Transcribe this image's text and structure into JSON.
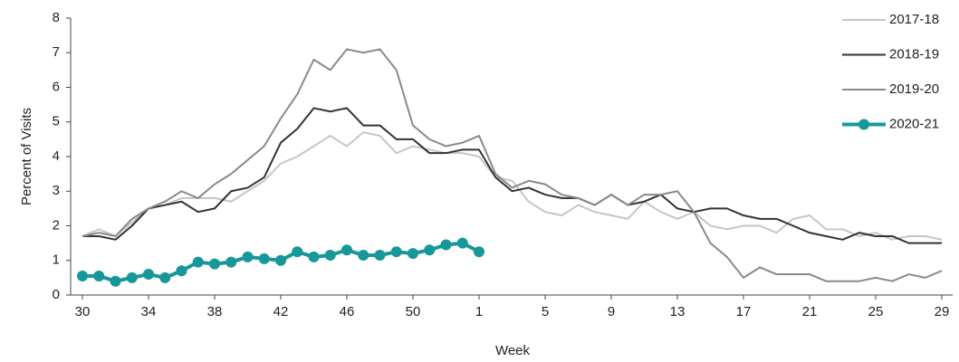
{
  "chart_data": {
    "type": "line",
    "xlabel": "Week",
    "ylabel": "Percent of Visits",
    "categories": [
      "30",
      null,
      null,
      null,
      "34",
      null,
      null,
      null,
      "38",
      null,
      null,
      null,
      "42",
      null,
      null,
      null,
      "46",
      null,
      null,
      null,
      "50",
      null,
      null,
      null,
      "1",
      null,
      null,
      null,
      "5",
      null,
      null,
      null,
      "9",
      null,
      null,
      null,
      "13",
      null,
      null,
      null,
      "17",
      null,
      null,
      null,
      "21",
      null,
      null,
      null,
      "25",
      null,
      null,
      null,
      "29"
    ],
    "ylim": [
      0,
      8
    ],
    "yticks": [
      0,
      1,
      2,
      3,
      4,
      5,
      6,
      7,
      8
    ],
    "legend": "upper right",
    "series": [
      {
        "name": "2017-18",
        "color": "#c6c6c6",
        "values": [
          1.7,
          1.9,
          1.7,
          2.1,
          2.5,
          2.6,
          2.8,
          2.8,
          2.8,
          2.7,
          3.0,
          3.3,
          3.8,
          4.0,
          4.3,
          4.6,
          4.3,
          4.7,
          4.6,
          4.1,
          4.3,
          4.2,
          4.1,
          4.1,
          4.0,
          3.4,
          3.3,
          2.7,
          2.4,
          2.3,
          2.6,
          2.4,
          2.3,
          2.2,
          2.7,
          2.4,
          2.2,
          2.4,
          2.0,
          1.9,
          2.0,
          2.0,
          1.8,
          2.2,
          2.3,
          1.9,
          1.9,
          1.7,
          1.8,
          1.6,
          1.7,
          1.7,
          1.6
        ]
      },
      {
        "name": "2018-19",
        "color": "#333333",
        "values": [
          1.7,
          1.7,
          1.6,
          2.0,
          2.5,
          2.6,
          2.7,
          2.4,
          2.5,
          3.0,
          3.1,
          3.4,
          4.4,
          4.8,
          5.4,
          5.3,
          5.4,
          4.9,
          4.9,
          4.5,
          4.5,
          4.1,
          4.1,
          4.2,
          4.2,
          3.4,
          3.0,
          3.1,
          2.9,
          2.8,
          2.8,
          2.6,
          2.9,
          2.6,
          2.7,
          2.9,
          2.5,
          2.4,
          2.5,
          2.5,
          2.3,
          2.2,
          2.2,
          2.0,
          1.8,
          1.7,
          1.6,
          1.8,
          1.7,
          1.7,
          1.5,
          1.5,
          1.5
        ]
      },
      {
        "name": "2019-20",
        "color": "#8a8a8a",
        "values": [
          1.7,
          1.8,
          1.7,
          2.2,
          2.5,
          2.7,
          3.0,
          2.8,
          3.2,
          3.5,
          3.9,
          4.3,
          5.1,
          5.8,
          6.8,
          6.5,
          7.1,
          7.0,
          7.1,
          6.5,
          4.9,
          4.5,
          4.3,
          4.4,
          4.6,
          3.5,
          3.1,
          3.3,
          3.2,
          2.9,
          2.8,
          2.6,
          2.9,
          2.6,
          2.9,
          2.9,
          3.0,
          2.4,
          1.5,
          1.1,
          0.5,
          0.8,
          0.6,
          0.6,
          0.6,
          0.4,
          0.4,
          0.4,
          0.5,
          0.4,
          0.6,
          0.5,
          0.7
        ]
      },
      {
        "name": "2020-21",
        "color": "#17979a",
        "marker": "circle",
        "values": [
          0.55,
          0.55,
          0.4,
          0.5,
          0.6,
          0.5,
          0.7,
          0.95,
          0.9,
          0.95,
          1.1,
          1.05,
          1.0,
          1.25,
          1.1,
          1.15,
          1.3,
          1.15,
          1.15,
          1.25,
          1.2,
          1.3,
          1.45,
          1.5,
          1.25,
          null,
          null,
          null,
          null,
          null,
          null,
          null,
          null,
          null,
          null,
          null,
          null,
          null,
          null,
          null,
          null,
          null,
          null,
          null,
          null,
          null,
          null,
          null,
          null,
          null,
          null,
          null,
          null
        ]
      }
    ]
  }
}
